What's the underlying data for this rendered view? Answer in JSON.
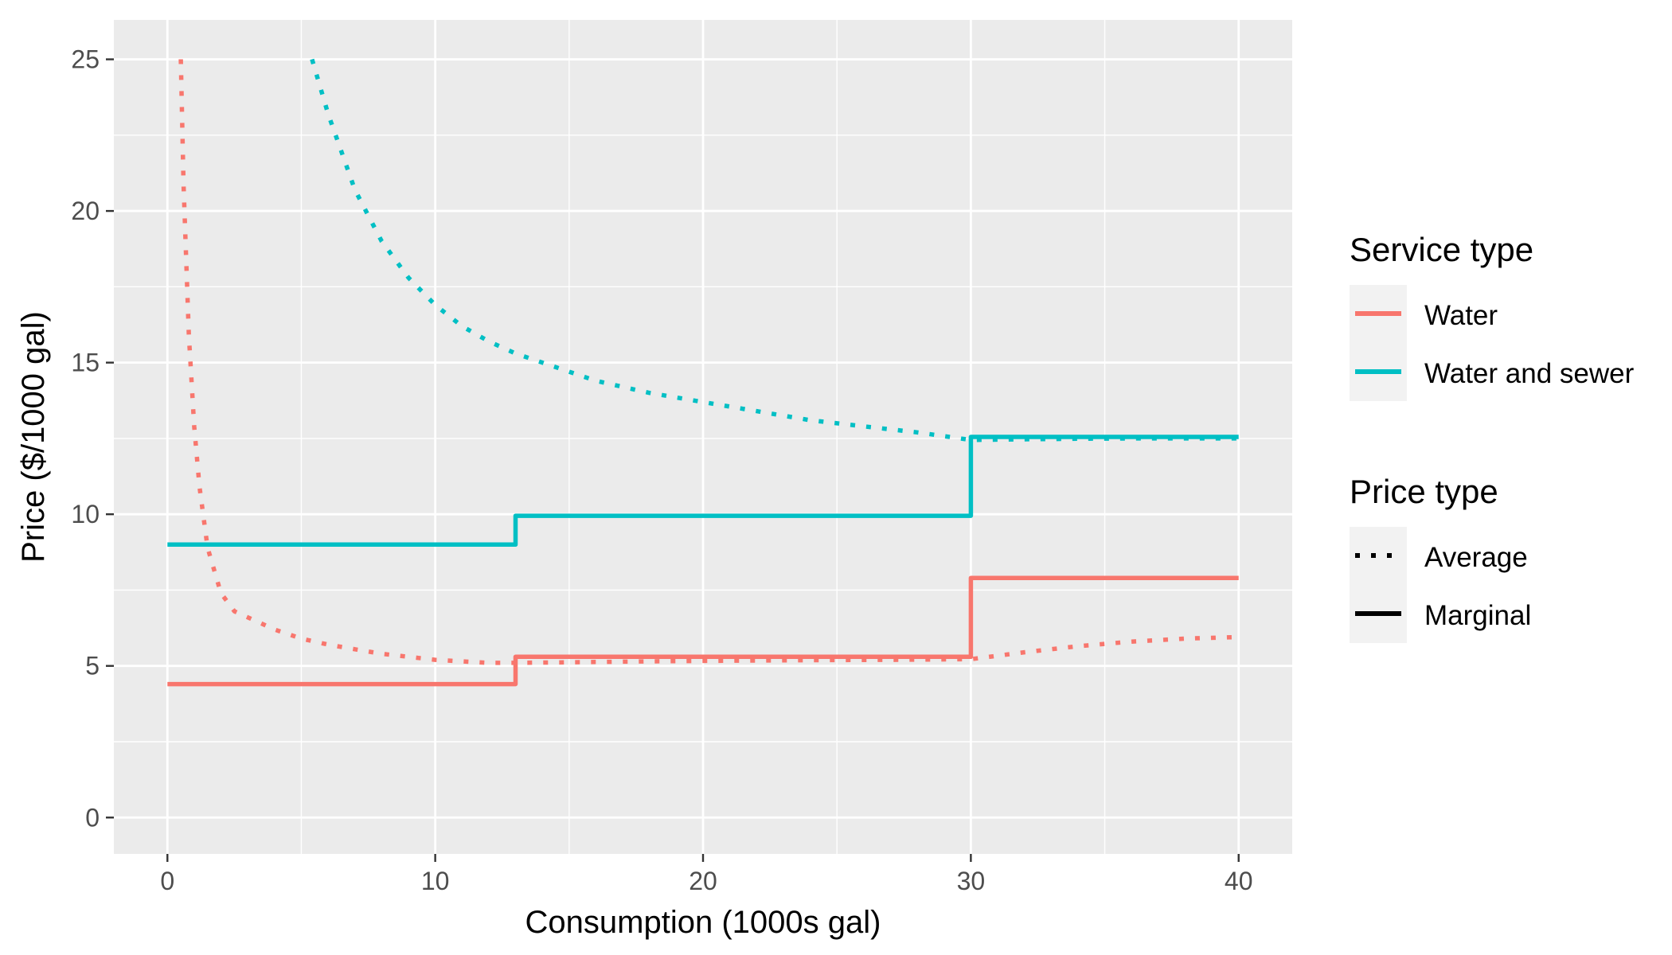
{
  "chart_data": {
    "type": "line",
    "xlabel": "Consumption (1000s gal)",
    "ylabel": "Price ($/1000 gal)",
    "xlim": [
      -2,
      42
    ],
    "ylim": [
      -1.2,
      26.3
    ],
    "x_ticks": [
      0,
      10,
      20,
      30,
      40
    ],
    "y_ticks": [
      0,
      5,
      10,
      15,
      20,
      25
    ],
    "x_tick_labels": [
      "0",
      "10",
      "20",
      "30",
      "40"
    ],
    "y_tick_labels": [
      "0",
      "5",
      "10",
      "15",
      "20",
      "25"
    ],
    "grid": true,
    "legend_placement": "right",
    "colors": {
      "water": "#F8766D",
      "water_and_sewer": "#00BFC4",
      "panel": "#EBEBEB",
      "grid": "#FFFFFF",
      "tick_text": "#4D4D4D"
    },
    "legends": {
      "service_type": {
        "title": "Service type",
        "entries": [
          {
            "label": "Water",
            "color": "#F8766D"
          },
          {
            "label": "Water and sewer",
            "color": "#00BFC4"
          }
        ]
      },
      "price_type": {
        "title": "Price type",
        "entries": [
          {
            "label": "Average",
            "linetype": "dotted"
          },
          {
            "label": "Marginal",
            "linetype": "solid"
          }
        ]
      }
    },
    "series": [
      {
        "service": "Water",
        "price_type": "Marginal",
        "color": "#F8766D",
        "linetype": "solid",
        "x": [
          0,
          13,
          13,
          30,
          30,
          40
        ],
        "y": [
          4.4,
          4.4,
          5.3,
          5.3,
          7.9,
          7.9
        ]
      },
      {
        "service": "Water",
        "price_type": "Average",
        "color": "#F8766D",
        "linetype": "dotted",
        "x": [
          0.5,
          0.6,
          0.8,
          1,
          1.2,
          1.5,
          2,
          2.5,
          3,
          4,
          5,
          6,
          7,
          8,
          9,
          10,
          11,
          12,
          13,
          15,
          18,
          21,
          24,
          27,
          30,
          32,
          34,
          36,
          38,
          40
        ],
        "y": [
          25.0,
          20.9,
          15.9,
          12.9,
          10.9,
          8.9,
          7.4,
          6.8,
          6.6,
          6.2,
          5.9,
          5.7,
          5.55,
          5.4,
          5.3,
          5.2,
          5.15,
          5.1,
          5.1,
          5.12,
          5.15,
          5.17,
          5.19,
          5.2,
          5.22,
          5.45,
          5.65,
          5.8,
          5.9,
          5.95
        ]
      },
      {
        "service": "Water and sewer",
        "price_type": "Marginal",
        "color": "#00BFC4",
        "linetype": "solid",
        "x": [
          0,
          13,
          13,
          30,
          30,
          40
        ],
        "y": [
          9.0,
          9.0,
          9.95,
          9.95,
          12.55,
          12.55
        ]
      },
      {
        "service": "Water and sewer",
        "price_type": "Average",
        "color": "#00BFC4",
        "linetype": "dotted",
        "x": [
          5.4,
          6,
          7,
          8,
          9,
          10,
          11,
          12,
          13,
          14,
          15,
          16,
          18,
          20,
          22,
          24,
          26,
          28,
          30,
          32,
          34,
          36,
          38,
          40
        ],
        "y": [
          25.0,
          23.2,
          20.7,
          19.0,
          17.8,
          16.9,
          16.2,
          15.7,
          15.3,
          15.0,
          14.7,
          14.4,
          14.0,
          13.7,
          13.4,
          13.1,
          12.9,
          12.7,
          12.45,
          12.47,
          12.49,
          12.5,
          12.5,
          12.5
        ]
      }
    ]
  }
}
